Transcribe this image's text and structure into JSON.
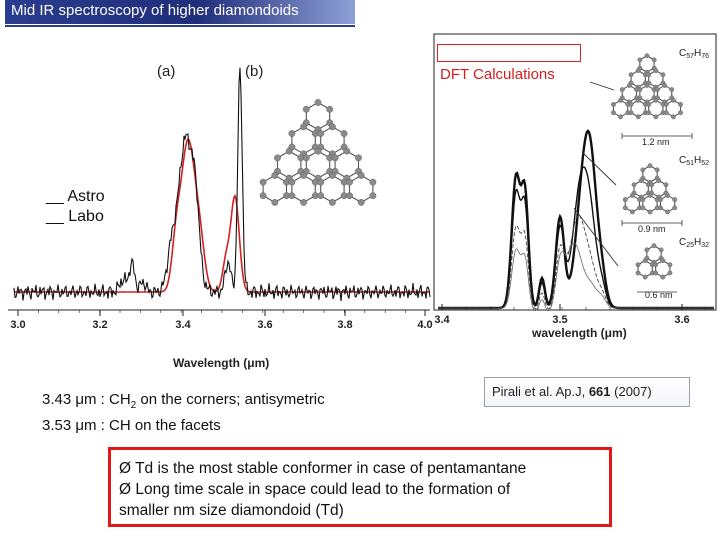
{
  "title": "Mid IR spectroscopy of higher diamondoids",
  "dft_label": "DFT Calculations",
  "legend": {
    "astro": "__ Astro",
    "labo": "__ Labo"
  },
  "left_plot": {
    "panel_a": "(a)",
    "panel_b": "(b)",
    "xlabel": "Wavelength (μm)",
    "ticks": [
      "3.0",
      "3.2",
      "3.4",
      "3.6",
      "3.8",
      "4.0"
    ],
    "colors": {
      "astro": "#111111",
      "labo": "#d42020"
    }
  },
  "right_plot": {
    "xlabel": "wavelength (μm)",
    "ticks": [
      "3.4",
      "3.5",
      "3.6"
    ],
    "formula_1": "C57H76",
    "formula_2": "C51H52",
    "formula_3": "C25H32",
    "size_1": "1.2 nm",
    "size_2": "0.9 nm",
    "size_3": "0.6 nm"
  },
  "caption": {
    "line1_pre": "3.43 μm : CH",
    "line1_sub": "2",
    "line1_post": " on the corners; antisymetric",
    "line2": "3.53 μm : CH on the facets"
  },
  "reference": {
    "pre": "Pirali et al. Ap.J, ",
    "vol": "661",
    "post": " (2007)"
  },
  "conclusions": {
    "bullet_symbol": "Ø",
    "items": [
      "Td is the most stable conformer in case of pentamantane",
      "Long time scale in space could lead to the formation of",
      "smaller nm size diamondoid (Td)"
    ]
  }
}
